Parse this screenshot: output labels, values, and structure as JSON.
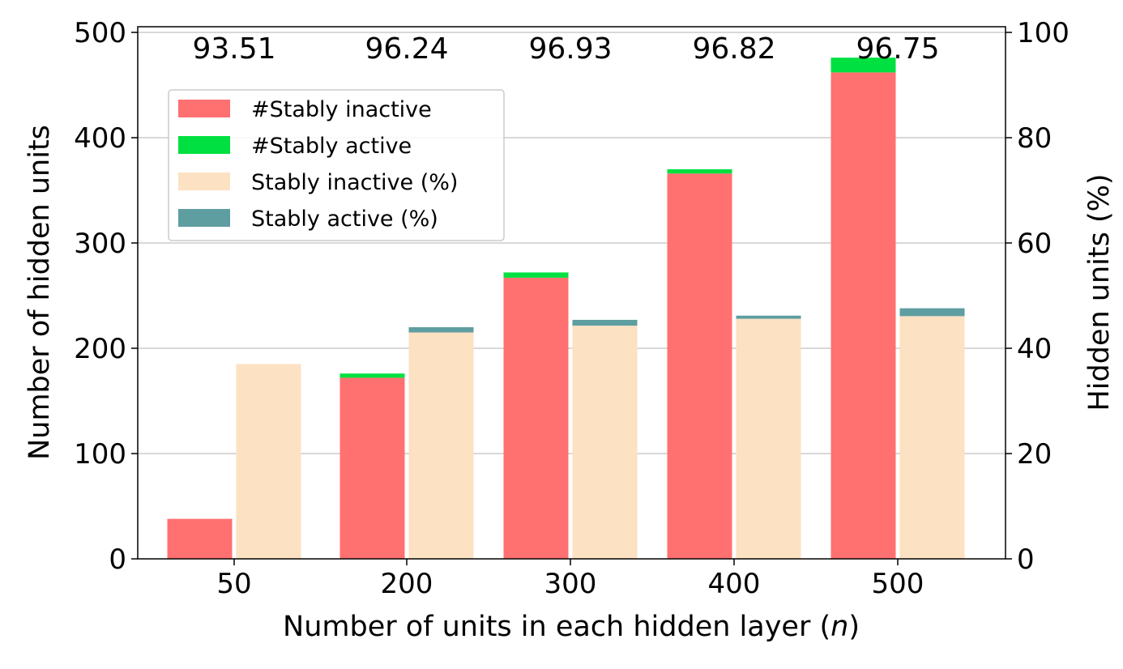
{
  "chart_data": {
    "type": "bar",
    "categories": [
      "50",
      "200",
      "300",
      "400",
      "500"
    ],
    "xlabel": "Number of units in each hidden layer (n)",
    "ylabel_left": "Number of hidden units",
    "ylabel_right": "Hidden units (%)",
    "ylim_left": [
      0,
      500
    ],
    "ylim_right": [
      0,
      100
    ],
    "yticks_left": [
      "0",
      "100",
      "200",
      "300",
      "400",
      "500"
    ],
    "yticks_right": [
      "0",
      "20",
      "40",
      "60",
      "80",
      "100"
    ],
    "grid": "horizontal",
    "legend_position": "upper-left",
    "top_labels": [
      "93.51",
      "96.24",
      "96.93",
      "96.82",
      "96.75"
    ],
    "series": [
      {
        "name": "#Stably inactive",
        "axis": "left",
        "stack": "count",
        "values": [
          38,
          172,
          267,
          366,
          462
        ],
        "color": "#ff7070"
      },
      {
        "name": "#Stably active",
        "axis": "left",
        "stack": "count",
        "values": [
          0,
          4,
          5,
          4,
          14
        ],
        "color": "#00e040"
      },
      {
        "name": "Stably inactive (%)",
        "axis": "right",
        "stack": "percent",
        "values": [
          37.0,
          43.0,
          44.3,
          45.6,
          46.1
        ],
        "color": "#fce1c2"
      },
      {
        "name": "Stably active (%)",
        "axis": "right",
        "stack": "percent",
        "values": [
          0.0,
          1.0,
          1.1,
          0.6,
          1.5
        ],
        "color": "#5f9ea0"
      }
    ]
  }
}
